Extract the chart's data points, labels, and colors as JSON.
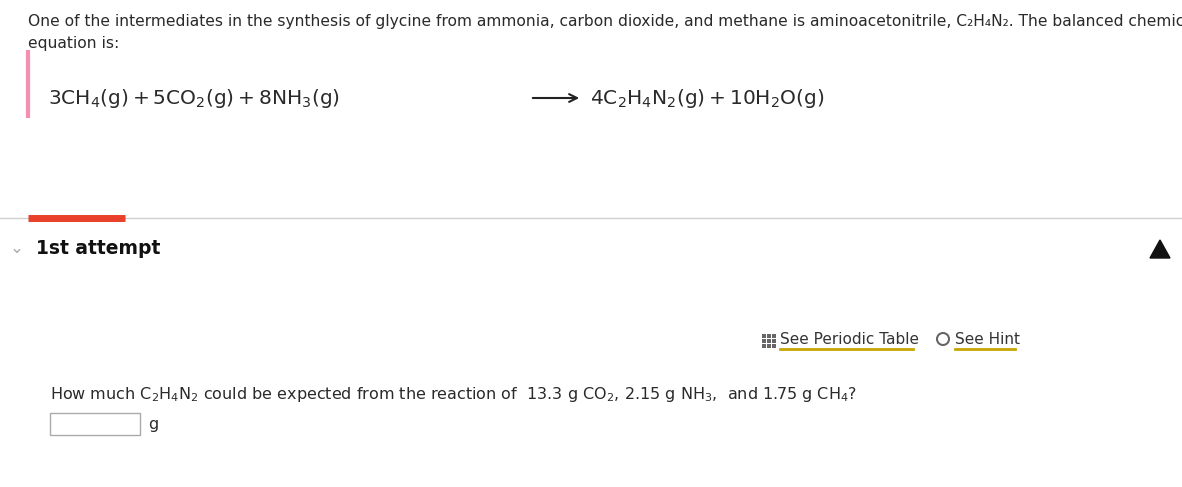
{
  "bg_color": "#ffffff",
  "top_text_line1": "One of the intermediates in the synthesis of glycine from ammonia, carbon dioxide, and methane is aminoacetonitrile, C₂H₄N₂. The balanced chemical",
  "top_text_line2": "equation is:",
  "pink_bar_color": "#f48fb1",
  "red_bar_color": "#e8402a",
  "divider_color": "#d0d0d0",
  "attempt_label": "1st attempt",
  "unit_label": "g",
  "gold_underline_color": "#c8a500",
  "text_color": "#2a2a2a",
  "gray_text_color": "#555555",
  "light_gray": "#aaaaaa",
  "arrow_color": "#222222",
  "chevron_color": "#aaaaaa",
  "figwidth": 11.82,
  "figheight": 4.87,
  "dpi": 100
}
